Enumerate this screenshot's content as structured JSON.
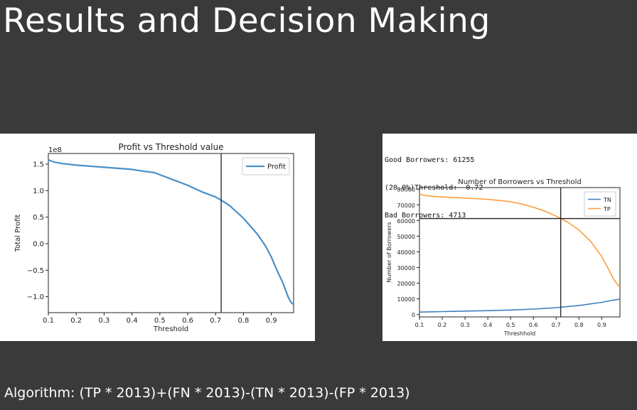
{
  "slide": {
    "title": "Results and Decision Making",
    "algorithm": "Algorithm: (TP * 2013)+(FN * 2013)-(TN * 2013)-(FP * 2013)"
  },
  "stats": {
    "good": "Good Borrowers: 61255",
    "threshold": "(20.0%)Threshold:  0.72",
    "bad": "Bad Borrowers: 4713"
  },
  "chart_data": [
    {
      "type": "line",
      "title": "Profit vs Threshold value",
      "xlabel": "Threshold",
      "ylabel": "Total Profit",
      "offset_text": "1e8",
      "xlim": [
        0.1,
        0.98
      ],
      "ylim": [
        -1.3,
        1.7
      ],
      "xticks": [
        0.1,
        0.2,
        0.3,
        0.4,
        0.5,
        0.6,
        0.7,
        0.8,
        0.9
      ],
      "xtick_labels": [
        "0.1",
        "0.2",
        "0.3",
        "0.4",
        "0.5",
        "0.6",
        "0.7",
        "0.8",
        "0.9"
      ],
      "yticks": [
        1.5,
        1.0,
        0.5,
        0.0,
        -0.5,
        -1.0
      ],
      "ytick_labels": [
        "1.5",
        "1.0",
        "0.5",
        "0.0",
        "−0.5",
        "−1.0"
      ],
      "legend": "top-right",
      "grid": false,
      "vline": 0.72,
      "series": [
        {
          "name": "Profit",
          "color": "#4a90c8",
          "x": [
            0.1,
            0.12,
            0.15,
            0.2,
            0.25,
            0.3,
            0.35,
            0.4,
            0.45,
            0.48,
            0.5,
            0.55,
            0.6,
            0.65,
            0.7,
            0.72,
            0.75,
            0.8,
            0.85,
            0.88,
            0.9,
            0.92,
            0.94,
            0.96,
            0.97,
            0.98
          ],
          "y": [
            1.58,
            1.54,
            1.51,
            1.48,
            1.46,
            1.44,
            1.42,
            1.4,
            1.36,
            1.34,
            1.3,
            1.2,
            1.1,
            0.98,
            0.88,
            0.82,
            0.72,
            0.48,
            0.18,
            -0.05,
            -0.25,
            -0.5,
            -0.72,
            -1.0,
            -1.1,
            -1.15
          ]
        }
      ]
    },
    {
      "type": "line",
      "title": "Number of Borrowers vs Threshold",
      "xlabel": "Threshhold",
      "ylabel": "Number of Borrowers",
      "xlim": [
        0.1,
        0.98
      ],
      "ylim": [
        -1500,
        81000
      ],
      "xticks": [
        0.1,
        0.2,
        0.3,
        0.4,
        0.5,
        0.6,
        0.7,
        0.8,
        0.9
      ],
      "xtick_labels": [
        "0.1",
        "0.2",
        "0.3",
        "0.4",
        "0.5",
        "0.6",
        "0.7",
        "0.8",
        "0.9"
      ],
      "yticks": [
        0,
        10000,
        20000,
        30000,
        40000,
        50000,
        60000,
        70000,
        80000
      ],
      "ytick_labels": [
        "0",
        "10000",
        "20000",
        "30000",
        "40000",
        "50000",
        "60000",
        "70000",
        "80000"
      ],
      "legend": "top-right",
      "grid": false,
      "vline": 0.72,
      "hline": 61255,
      "series": [
        {
          "name": "TN",
          "color": "#3f7fbf",
          "x": [
            0.1,
            0.2,
            0.3,
            0.4,
            0.5,
            0.6,
            0.7,
            0.72,
            0.8,
            0.9,
            0.95,
            0.98
          ],
          "y": [
            1600,
            1900,
            2200,
            2500,
            2900,
            3500,
            4400,
            4713,
            5800,
            7800,
            9200,
            9800
          ]
        },
        {
          "name": "TP",
          "color": "#ff9d3c",
          "x": [
            0.1,
            0.12,
            0.15,
            0.2,
            0.3,
            0.4,
            0.45,
            0.5,
            0.55,
            0.6,
            0.65,
            0.7,
            0.72,
            0.75,
            0.8,
            0.85,
            0.9,
            0.93,
            0.95,
            0.97,
            0.98
          ],
          "y": [
            77000,
            76000,
            75500,
            75000,
            74300,
            73500,
            72800,
            72000,
            70500,
            68500,
            66000,
            62800,
            61255,
            59000,
            54000,
            47000,
            37000,
            29000,
            23000,
            19000,
            17500
          ]
        }
      ]
    }
  ]
}
